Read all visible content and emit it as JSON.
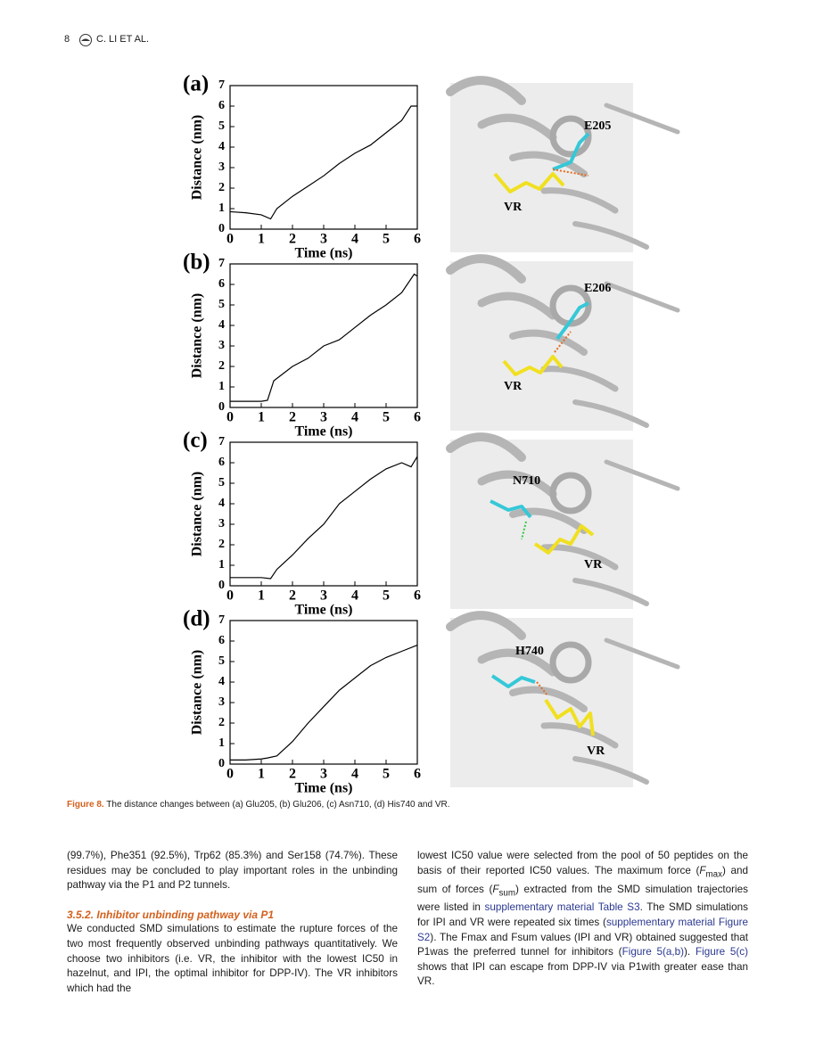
{
  "header": {
    "page_number": "8",
    "running_head": "C. LI ET AL."
  },
  "chart_data": [
    {
      "type": "line",
      "label": "(a)",
      "x_label": "Time (ns)",
      "y_label": "Distance (nm)",
      "color": "#000000",
      "x": [
        0,
        0.5,
        1,
        1.3,
        1.5,
        2,
        2.5,
        3,
        3.5,
        4,
        4.5,
        5,
        5.5,
        5.8,
        6
      ],
      "values": [
        0.85,
        0.8,
        0.7,
        0.5,
        1.0,
        1.6,
        2.1,
        2.6,
        3.2,
        3.7,
        4.1,
        4.7,
        5.3,
        6.0,
        6.0
      ],
      "xlim": [
        0,
        6
      ],
      "ylim": [
        0,
        7
      ],
      "xticks": [
        0,
        1,
        2,
        3,
        4,
        5,
        6
      ],
      "yticks": [
        0,
        1,
        2,
        3,
        4,
        5,
        6,
        7
      ]
    },
    {
      "type": "line",
      "label": "(b)",
      "x_label": "Time (ns)",
      "y_label": "Distance (nm)",
      "color": "#000000",
      "x": [
        0,
        0.5,
        1,
        1.2,
        1.4,
        2,
        2.5,
        3,
        3.5,
        4,
        4.5,
        5,
        5.5,
        5.9,
        6
      ],
      "values": [
        0.3,
        0.3,
        0.3,
        0.35,
        1.3,
        2.0,
        2.4,
        3.0,
        3.3,
        3.9,
        4.5,
        5.0,
        5.6,
        6.5,
        6.4
      ],
      "xlim": [
        0,
        6
      ],
      "ylim": [
        0,
        7
      ],
      "xticks": [
        0,
        1,
        2,
        3,
        4,
        5,
        6
      ],
      "yticks": [
        0,
        1,
        2,
        3,
        4,
        5,
        6,
        7
      ]
    },
    {
      "type": "line",
      "label": "(c)",
      "x_label": "Time (ns)",
      "y_label": "Distance (nm)",
      "color": "#000000",
      "x": [
        0,
        0.5,
        1,
        1.3,
        1.5,
        2,
        2.5,
        3,
        3.5,
        4,
        4.5,
        5,
        5.5,
        5.8,
        6
      ],
      "values": [
        0.4,
        0.4,
        0.4,
        0.35,
        0.8,
        1.5,
        2.3,
        3.0,
        4.0,
        4.6,
        5.2,
        5.7,
        6.0,
        5.8,
        6.3
      ],
      "xlim": [
        0,
        6
      ],
      "ylim": [
        0,
        7
      ],
      "xticks": [
        0,
        1,
        2,
        3,
        4,
        5,
        6
      ],
      "yticks": [
        0,
        1,
        2,
        3,
        4,
        5,
        6,
        7
      ]
    },
    {
      "type": "line",
      "label": "(d)",
      "x_label": "Time (ns)",
      "y_label": "Distance (nm)",
      "color": "#000000",
      "x": [
        0,
        0.5,
        1,
        1.2,
        1.5,
        2,
        2.5,
        3,
        3.5,
        4,
        4.5,
        5,
        5.5,
        6
      ],
      "values": [
        0.2,
        0.2,
        0.25,
        0.3,
        0.4,
        1.1,
        2.0,
        2.8,
        3.6,
        4.2,
        4.8,
        5.2,
        5.5,
        5.8
      ],
      "xlim": [
        0,
        6
      ],
      "ylim": [
        0,
        7
      ],
      "xticks": [
        0,
        1,
        2,
        3,
        4,
        5,
        6
      ],
      "yticks": [
        0,
        1,
        2,
        3,
        4,
        5,
        6,
        7
      ]
    }
  ],
  "images": [
    {
      "residue": "E205",
      "ligand": "VR"
    },
    {
      "residue": "E206",
      "ligand": "VR"
    },
    {
      "residue": "N710",
      "ligand": "VR"
    },
    {
      "residue": "H740",
      "ligand": "VR"
    }
  ],
  "caption": {
    "label": "Figure 8.",
    "text": "The distance changes between (a) Glu205, (b) Glu206, (c) Asn710, (d) His740 and VR."
  },
  "left_column": {
    "paragraph_1": [
      "(99.7%), Phe351 (92.5%), Trp62 (85.3%) and Ser158 (74.7%). These residues may be concluded to play important roles in the unbinding pathway via the P1 and P2 tunnels."
    ],
    "heading": "3.5.2. Inhibitor unbinding pathway via P1",
    "paragraph_2": [
      "We conducted SMD simulations to estimate the rupture forces of the two most frequently observed unbinding pathways quantitatively. We choose two inhibitors (i.e. VR, the inhibitor with the lowest IC50 in hazelnut, and IPI, the optimal inhibitor for DPP-IV). The VR inhibitors which had the"
    ]
  },
  "right_column": {
    "paragraph": [
      "lowest IC50 value were selected from the pool of 50 peptides on the basis of their reported IC50 values. The maximum force (",
      {
        "text": "F",
        "style": "italic"
      },
      {
        "text": "max",
        "style": "sub"
      },
      ") and sum of forces (",
      {
        "text": "F",
        "style": "italic"
      },
      {
        "text": "sum",
        "style": "sub"
      },
      ") extracted from the SMD simulation trajectories were listed in ",
      {
        "text": "supplementary material Table S3",
        "style": "link"
      },
      ". The SMD simulations for IPI and VR were repeated six times (",
      {
        "text": "supplementary material Figure S2",
        "style": "link"
      },
      "). The Fmax and Fsum values (IPI and VR) obtained suggested that P1was the preferred tunnel for inhibitors (",
      {
        "text": "Figure 5(a,b)",
        "style": "link"
      },
      "). ",
      {
        "text": "Figure 5(c)",
        "style": "link"
      },
      " shows that IPI can escape from DPP-IV via P1with greater ease than VR."
    ]
  }
}
